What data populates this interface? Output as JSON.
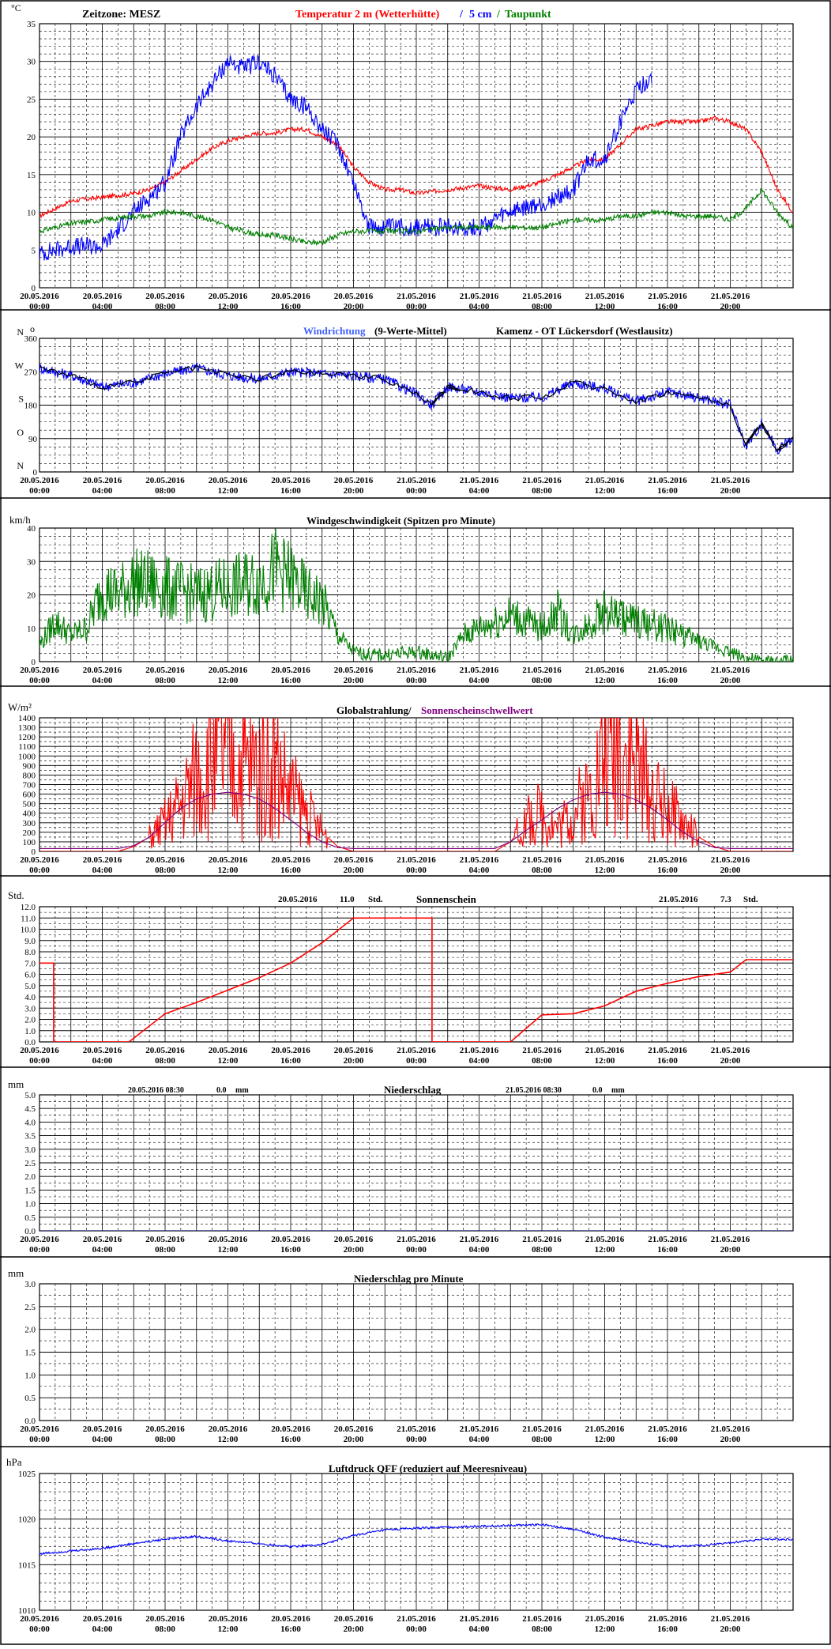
{
  "x_ticks": {
    "dates": [
      "20.05.2016",
      "20.05.2016",
      "20.05.2016",
      "20.05.2016",
      "20.05.2016",
      "20.05.2016",
      "21.05.2016",
      "21.05.2016",
      "21.05.2016",
      "21.05.2016",
      "21.05.2016",
      "21.05.2016"
    ],
    "times": [
      "00:00",
      "04:00",
      "08:00",
      "12:00",
      "16:00",
      "20:00",
      "00:00",
      "04:00",
      "08:00",
      "12:00",
      "16:00",
      "20:00"
    ]
  },
  "colors": {
    "temp": "#ff0000",
    "soil": "#0000ff",
    "dew": "#008000",
    "winddir": "#0000ff",
    "windavg": "#000000",
    "wind": "#008000",
    "radiation": "#ff0000",
    "sunthreshold": "#800080",
    "sunshine": "#ff0000",
    "pressure": "#0000ff",
    "rain": "#000080"
  },
  "chart_data": [
    {
      "id": "temp",
      "type": "line",
      "unit_label": "°C",
      "title_parts": {
        "zone": "Zeitzone: MESZ",
        "t2m": "Temperatur 2 m (Wetterhütte)",
        "sep": "/",
        "t5": "5 cm",
        "sep2": "/",
        "dew": "Taupunkt"
      },
      "ylim": [
        0,
        35
      ],
      "yticks": [
        0,
        5,
        10,
        15,
        20,
        25,
        30,
        35
      ],
      "x_hours": [
        0,
        2,
        4,
        6,
        7,
        8,
        9,
        10,
        11,
        12,
        13,
        14,
        15,
        16,
        17,
        18,
        19,
        20,
        21,
        22,
        23,
        24,
        26,
        28,
        30,
        32,
        34,
        35,
        36,
        37,
        38,
        39,
        40,
        41,
        42,
        43,
        44,
        45,
        46,
        47,
        48
      ],
      "series": [
        {
          "name": "Temperatur 2 m (Wetterhütte)",
          "color_key": "temp",
          "values": [
            9.5,
            11.5,
            12,
            12.5,
            13,
            14,
            15.5,
            17,
            18.5,
            19.5,
            20,
            20.5,
            20.5,
            21,
            21,
            20,
            19,
            16,
            14,
            13,
            13,
            12.5,
            13,
            13.5,
            13,
            14,
            16,
            17,
            17,
            19,
            21,
            21.5,
            22,
            22,
            22,
            22.5,
            22,
            21,
            18,
            13,
            10
          ]
        },
        {
          "name": "5 cm",
          "color_key": "soil",
          "values": [
            4.5,
            5.5,
            5.5,
            10,
            12,
            14,
            20,
            24,
            27,
            30,
            29,
            30,
            28,
            25,
            24,
            21,
            19,
            14,
            8,
            8,
            8,
            8,
            8,
            8,
            10,
            11,
            13,
            17,
            17,
            22,
            26,
            28,
            null,
            null,
            null,
            null,
            null,
            null,
            null,
            null,
            null
          ]
        },
        {
          "name": "Taupunkt",
          "color_key": "dew",
          "values": [
            7.5,
            8.5,
            9,
            9.5,
            9.5,
            10,
            10,
            9.5,
            9,
            8,
            7.5,
            7,
            7,
            6.5,
            6,
            6,
            7,
            7.5,
            7.5,
            7.5,
            7.5,
            7.5,
            8,
            8,
            8,
            8,
            9,
            9,
            9,
            9.5,
            9.5,
            10,
            10,
            9.5,
            9.5,
            9.5,
            9,
            10.5,
            13,
            10,
            8
          ]
        }
      ]
    },
    {
      "id": "winddir",
      "type": "line",
      "title_parts": {
        "name": "Windrichtung",
        "suffix": "(9-Werte-Mittel)",
        "station": "Kamenz - OT Lückersdorf (Westlausitz)"
      },
      "ylim": [
        0,
        360
      ],
      "yticks": [
        0,
        90,
        180,
        270,
        360
      ],
      "compass_labels": [
        "N",
        "O",
        "S",
        "W",
        "N"
      ],
      "north_mark": "o",
      "x_hours": [
        0,
        2,
        4,
        6,
        8,
        10,
        12,
        14,
        16,
        18,
        20,
        22,
        24,
        25,
        26,
        28,
        30,
        32,
        34,
        36,
        38,
        40,
        42,
        44,
        45,
        46,
        47,
        48
      ],
      "series": [
        {
          "name": "Windrichtung",
          "color_key": "winddir",
          "values": [
            280,
            260,
            230,
            240,
            265,
            280,
            260,
            250,
            270,
            265,
            260,
            250,
            210,
            180,
            230,
            215,
            200,
            200,
            240,
            225,
            190,
            215,
            200,
            180,
            70,
            130,
            60,
            90
          ]
        }
      ]
    },
    {
      "id": "wind",
      "type": "line",
      "unit_label": "km/h",
      "title": "Windgeschwindigkeit (Spitzen pro Minute)",
      "ylim": [
        0,
        40
      ],
      "yticks": [
        0,
        10,
        20,
        30,
        40
      ],
      "x_hours": [
        0,
        1,
        2,
        3,
        4,
        5,
        6,
        8,
        10,
        12,
        14,
        15,
        16,
        17,
        18,
        19,
        20,
        21,
        22,
        24,
        26,
        27,
        28,
        30,
        32,
        33,
        34,
        36,
        38,
        40,
        42,
        44,
        45,
        46,
        47,
        48
      ],
      "series": [
        {
          "name": "Windgeschwindigkeit",
          "color_key": "wind",
          "values": [
            5,
            12,
            8,
            10,
            22,
            20,
            24,
            22,
            20,
            22,
            24,
            28,
            25,
            20,
            18,
            8,
            3,
            2,
            2,
            3,
            1,
            8,
            10,
            14,
            10,
            15,
            8,
            15,
            12,
            10,
            6,
            3,
            1,
            0,
            0,
            0
          ]
        }
      ]
    },
    {
      "id": "radiation",
      "type": "area",
      "unit_label": "W/m²",
      "title_parts": {
        "a": "Globalstrahlung/",
        "b": "Sonnenscheinschwellwert"
      },
      "ylim": [
        0,
        1400
      ],
      "yticks": [
        0,
        100,
        200,
        300,
        400,
        500,
        600,
        700,
        800,
        900,
        1000,
        1100,
        1200,
        1300,
        1400
      ],
      "x_hours": [
        0,
        5,
        6,
        7,
        8,
        9,
        10,
        11,
        12,
        13,
        14,
        15,
        16,
        17,
        18,
        19,
        20,
        24,
        29,
        30,
        31,
        32,
        33,
        34,
        35,
        36,
        37,
        38,
        39,
        40,
        41,
        42,
        43,
        44,
        48
      ],
      "series": [
        {
          "name": "Globalstrahlung",
          "color_key": "radiation",
          "values": [
            0,
            0,
            50,
            150,
            300,
            500,
            800,
            950,
            1000,
            900,
            850,
            900,
            600,
            400,
            200,
            50,
            0,
            0,
            0,
            100,
            300,
            400,
            250,
            400,
            600,
            1000,
            1200,
            900,
            600,
            450,
            300,
            150,
            50,
            0,
            0
          ]
        },
        {
          "name": "Sonnenscheinschwellwert",
          "color_key": "sunthreshold",
          "values": [
            30,
            30,
            60,
            150,
            300,
            450,
            550,
            600,
            620,
            600,
            550,
            450,
            330,
            200,
            100,
            40,
            30,
            30,
            30,
            100,
            220,
            330,
            450,
            540,
            600,
            620,
            600,
            540,
            450,
            330,
            200,
            100,
            40,
            30,
            30
          ]
        }
      ]
    },
    {
      "id": "sunshine",
      "type": "line",
      "unit_label": "Std.",
      "title": "Sonnenschein",
      "date1": "20.05.2016",
      "total1": "11.0",
      "unit1": "Std.",
      "date2": "21.05.2016",
      "total2": "7.3",
      "unit2": "Std.",
      "ylim": [
        0,
        12
      ],
      "yticks": [
        0,
        1,
        2,
        3,
        4,
        5,
        6,
        7,
        8,
        9,
        10,
        11,
        12
      ],
      "x_hours": [
        0,
        0.9,
        0.9,
        5.7,
        8,
        10,
        12,
        14,
        16,
        18,
        20,
        20.5,
        25,
        25,
        30,
        32,
        34,
        36,
        38,
        40,
        42,
        44,
        45,
        48
      ],
      "series": [
        {
          "name": "Sonnenschein",
          "color_key": "sunshine",
          "values": [
            7,
            7,
            0,
            0,
            2.5,
            3.5,
            4.6,
            5.7,
            7.0,
            8.8,
            11.0,
            11.0,
            11.0,
            0,
            0,
            2.4,
            2.5,
            3.2,
            4.5,
            5.2,
            5.8,
            6.2,
            7.3,
            7.3
          ]
        }
      ]
    },
    {
      "id": "rain",
      "type": "line",
      "unit_label": "mm",
      "title": "Niederschlag",
      "date1": "20.05.2016 08:30",
      "total1": "0.0",
      "unit1": "mm",
      "date2": "21.05.2016 08:30",
      "total2": "0.0",
      "unit2": "mm",
      "ylim": [
        0,
        5
      ],
      "yticks": [
        0,
        0.5,
        1,
        1.5,
        2,
        2.5,
        3,
        3.5,
        4,
        4.5,
        5
      ],
      "x_hours": [
        0,
        48
      ],
      "series": [
        {
          "name": "Niederschlag",
          "color_key": "rain",
          "values": [
            0,
            0
          ]
        }
      ]
    },
    {
      "id": "rainmin",
      "type": "line",
      "unit_label": "mm",
      "title": "Niederschlag pro Minute",
      "ylim": [
        0,
        3
      ],
      "yticks": [
        0,
        0.5,
        1,
        1.5,
        2,
        2.5,
        3
      ],
      "x_hours": [
        0,
        48
      ],
      "series": []
    },
    {
      "id": "pressure",
      "type": "line",
      "unit_label": "hPa",
      "title": "Luftdruck QFF (reduziert auf Meeresniveau)",
      "ylim": [
        1010,
        1025
      ],
      "yticks": [
        1010,
        1015,
        1020,
        1025
      ],
      "x_hours": [
        0,
        4,
        8,
        10,
        12,
        16,
        18,
        20,
        22,
        24,
        28,
        32,
        34,
        36,
        40,
        42,
        44,
        46,
        48
      ],
      "series": [
        {
          "name": "Luftdruck QFF",
          "color_key": "pressure",
          "values": [
            1016.2,
            1016.8,
            1017.8,
            1018.1,
            1017.6,
            1017.0,
            1017.2,
            1018.2,
            1018.8,
            1019.0,
            1019.2,
            1019.4,
            1018.9,
            1018.0,
            1017.0,
            1017.1,
            1017.4,
            1017.8,
            1017.8
          ]
        }
      ]
    }
  ]
}
